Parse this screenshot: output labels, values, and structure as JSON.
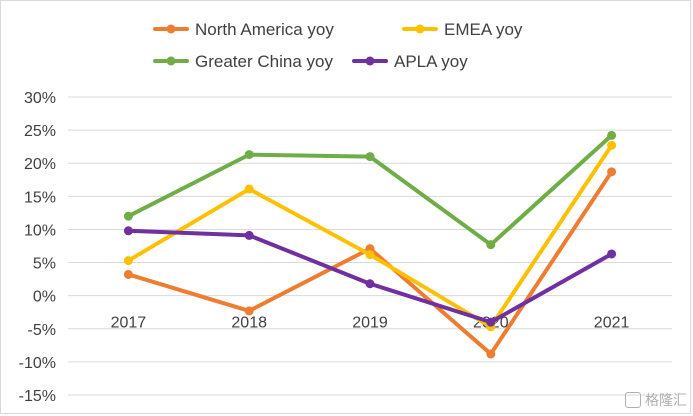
{
  "chart_data": {
    "type": "line",
    "categories": [
      "2017",
      "2018",
      "2019",
      "2020",
      "2021"
    ],
    "series": [
      {
        "name": "North America yoy",
        "color": "#ED7D31",
        "values": [
          3.2,
          -2.3,
          7.1,
          -8.8,
          18.7
        ]
      },
      {
        "name": "EMEA yoy",
        "color": "#FFC000",
        "values": [
          5.3,
          16.1,
          6.2,
          -4.7,
          22.7
        ]
      },
      {
        "name": "Greater China yoy",
        "color": "#70AD47",
        "values": [
          12.0,
          21.3,
          21.0,
          7.7,
          24.2
        ]
      },
      {
        "name": "APLA yoy",
        "color": "#7030A0",
        "values": [
          9.8,
          9.1,
          1.8,
          -4.0,
          6.3
        ]
      }
    ],
    "y_ticks": [
      "30%",
      "25%",
      "20%",
      "15%",
      "10%",
      "5%",
      "0%",
      "-5%",
      "-10%",
      "-15%"
    ],
    "ylim": [
      -15,
      30
    ],
    "y_unit": "%",
    "legend_position": "top",
    "grid": true
  },
  "watermark": {
    "icon": "watermark-logo-icon",
    "text": "格隆汇"
  }
}
